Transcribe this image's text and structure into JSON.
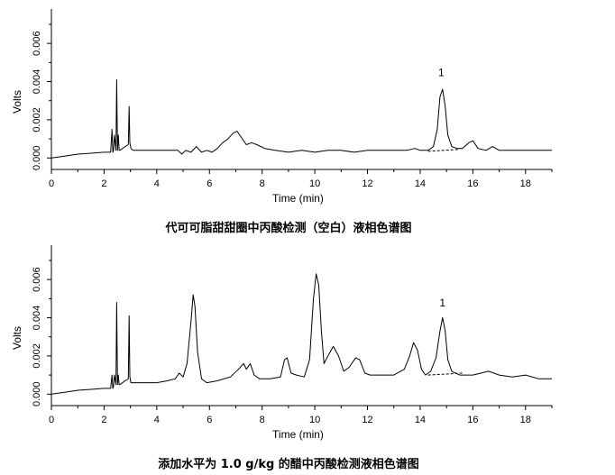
{
  "chart_data": [
    {
      "type": "line",
      "title": "代可可脂甜甜圈中丙酸检测（空白）液相色谱图",
      "xlabel": "Time (min)",
      "ylabel": "Volts",
      "xlim": [
        0,
        19
      ],
      "ylim": [
        -0.0006,
        0.0078
      ],
      "xticks": [
        "0",
        "2",
        "4",
        "6",
        "8",
        "10",
        "12",
        "14",
        "16",
        "18"
      ],
      "yticks": [
        "0.000",
        "0.002",
        "0.004",
        "0.006"
      ],
      "peak_label": {
        "text": "1",
        "x": 14.8,
        "y": 0.004
      },
      "baseline_dash": {
        "x": [
          14.3,
          15.5
        ],
        "y": [
          0.00035,
          0.00045
        ]
      },
      "series": [
        {
          "color": "#000000",
          "x": [
            0,
            0.5,
            1.0,
            1.5,
            2.0,
            2.25,
            2.3,
            2.33,
            2.36,
            2.39,
            2.45,
            2.48,
            2.51,
            2.54,
            2.57,
            2.6,
            2.8,
            2.92,
            2.95,
            2.98,
            3.02,
            3.1,
            3.3,
            3.6,
            4.0,
            4.4,
            4.8,
            4.95,
            5.1,
            5.3,
            5.5,
            5.7,
            5.9,
            6.1,
            6.3,
            6.5,
            6.7,
            6.9,
            7.05,
            7.2,
            7.4,
            7.6,
            7.8,
            8.1,
            8.5,
            9.0,
            9.5,
            10.0,
            10.5,
            11.0,
            11.5,
            12.0,
            12.5,
            13.0,
            13.5,
            13.8,
            14.0,
            14.3,
            14.5,
            14.65,
            14.75,
            14.85,
            14.95,
            15.05,
            15.2,
            15.4,
            15.6,
            15.85,
            16.0,
            16.2,
            16.5,
            16.75,
            17.0,
            17.5,
            18.0,
            18.5,
            19.0
          ],
          "y": [
            0.0,
            0.0001,
            0.0002,
            0.00025,
            0.0003,
            0.0003,
            0.0015,
            0.0003,
            0.0004,
            0.0012,
            0.0004,
            0.0041,
            0.0004,
            0.0012,
            0.0004,
            0.0004,
            0.0006,
            0.0007,
            0.0027,
            0.0008,
            0.0005,
            0.0004,
            0.0004,
            0.0004,
            0.0004,
            0.0004,
            0.0004,
            0.0002,
            0.0004,
            0.0003,
            0.0006,
            0.0003,
            0.0004,
            0.0003,
            0.0005,
            0.0008,
            0.001,
            0.0013,
            0.0014,
            0.0011,
            0.0007,
            0.0008,
            0.0007,
            0.0005,
            0.0004,
            0.0003,
            0.0004,
            0.0003,
            0.0004,
            0.0004,
            0.0003,
            0.0004,
            0.0004,
            0.0004,
            0.0004,
            0.0005,
            0.0004,
            0.0004,
            0.0006,
            0.0015,
            0.0032,
            0.0036,
            0.0027,
            0.0012,
            0.0006,
            0.0005,
            0.0005,
            0.0008,
            0.0009,
            0.0005,
            0.0004,
            0.0006,
            0.0004,
            0.0004,
            0.0004,
            0.0004,
            0.0004
          ]
        }
      ]
    },
    {
      "type": "line",
      "title": "添加水平为 1.0 g/kg 的醋中丙酸检测液相色谱图",
      "xlabel": "Time (min)",
      "ylabel": "Volts",
      "xlim": [
        0,
        19
      ],
      "ylim": [
        -0.0006,
        0.0078
      ],
      "xticks": [
        "0",
        "2",
        "4",
        "6",
        "8",
        "10",
        "12",
        "14",
        "16",
        "18"
      ],
      "yticks": [
        "0.000",
        "0.002",
        "0.004",
        "0.006"
      ],
      "peak_label": {
        "text": "1",
        "x": 14.85,
        "y": 0.0043
      },
      "baseline_dash": {
        "x": [
          14.3,
          15.6
        ],
        "y": [
          0.001,
          0.0011
        ]
      },
      "series": [
        {
          "color": "#000000",
          "x": [
            0,
            0.5,
            1.0,
            1.5,
            2.0,
            2.25,
            2.3,
            2.33,
            2.36,
            2.39,
            2.45,
            2.48,
            2.51,
            2.54,
            2.57,
            2.6,
            2.8,
            2.92,
            2.95,
            2.98,
            3.02,
            3.2,
            3.6,
            4.0,
            4.4,
            4.7,
            4.85,
            5.0,
            5.15,
            5.3,
            5.38,
            5.45,
            5.55,
            5.7,
            5.9,
            6.3,
            6.8,
            7.1,
            7.3,
            7.4,
            7.55,
            7.7,
            7.9,
            8.3,
            8.7,
            8.85,
            8.95,
            9.1,
            9.3,
            9.6,
            9.8,
            9.95,
            10.05,
            10.15,
            10.25,
            10.35,
            10.5,
            10.7,
            10.9,
            11.1,
            11.3,
            11.55,
            11.7,
            11.9,
            12.1,
            12.5,
            13.0,
            13.4,
            13.6,
            13.75,
            13.9,
            14.05,
            14.2,
            14.4,
            14.6,
            14.75,
            14.85,
            14.95,
            15.05,
            15.2,
            15.5,
            16.0,
            16.6,
            17.0,
            17.5,
            18.0,
            18.5,
            19.0
          ],
          "y": [
            0.0,
            0.0001,
            0.0002,
            0.00025,
            0.0003,
            0.0003,
            0.001,
            0.0003,
            0.0004,
            0.001,
            0.0005,
            0.0048,
            0.0005,
            0.001,
            0.0005,
            0.0005,
            0.0007,
            0.0008,
            0.0041,
            0.0009,
            0.0006,
            0.0006,
            0.0006,
            0.0006,
            0.0007,
            0.0008,
            0.0011,
            0.0009,
            0.0016,
            0.0038,
            0.0052,
            0.0046,
            0.0022,
            0.0008,
            0.0006,
            0.0007,
            0.0009,
            0.0013,
            0.0016,
            0.0013,
            0.0016,
            0.001,
            0.0008,
            0.0008,
            0.0009,
            0.0018,
            0.0019,
            0.0011,
            0.001,
            0.0009,
            0.0018,
            0.005,
            0.0063,
            0.0057,
            0.0033,
            0.0016,
            0.002,
            0.0025,
            0.002,
            0.0012,
            0.0014,
            0.0019,
            0.0018,
            0.0011,
            0.001,
            0.001,
            0.001,
            0.0013,
            0.002,
            0.0027,
            0.0023,
            0.0013,
            0.001,
            0.0012,
            0.0019,
            0.0033,
            0.004,
            0.0033,
            0.0018,
            0.0012,
            0.001,
            0.001,
            0.0012,
            0.001,
            0.0009,
            0.001,
            0.0008,
            0.0008
          ]
        }
      ]
    }
  ]
}
